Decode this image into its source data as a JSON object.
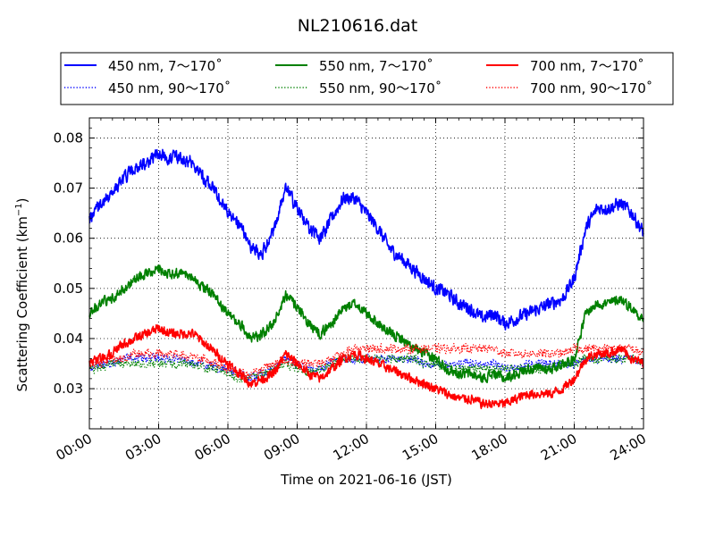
{
  "chart_data": {
    "type": "line",
    "title": "NL210616.dat",
    "xlabel": "Time on 2021-06-16 (JST)",
    "ylabel": "Scattering Coefficient (km",
    "ylabel_exp": "−1",
    "ylabel_close": ")",
    "xlim_hours": [
      0,
      24
    ],
    "ylim": [
      0.022,
      0.084
    ],
    "x_ticks": [
      0,
      3,
      6,
      9,
      12,
      15,
      18,
      21,
      24
    ],
    "x_tick_labels": [
      "00:00",
      "03:00",
      "06:00",
      "09:00",
      "12:00",
      "15:00",
      "18:00",
      "21:00",
      "24:00"
    ],
    "y_ticks": [
      0.03,
      0.04,
      0.05,
      0.06,
      0.07,
      0.08
    ],
    "y_tick_labels": [
      "0.03",
      "0.04",
      "0.05",
      "0.06",
      "0.07",
      "0.08"
    ],
    "grid": true,
    "legend_placement": "top, above plot",
    "hours": [
      0,
      0.5,
      1,
      1.5,
      2,
      2.5,
      3,
      3.5,
      4,
      4.5,
      5,
      5.5,
      6,
      6.5,
      7,
      7.5,
      8,
      8.5,
      9,
      9.5,
      10,
      10.5,
      11,
      11.5,
      12,
      12.5,
      13,
      13.5,
      14,
      14.5,
      15,
      15.5,
      16,
      16.5,
      17,
      17.5,
      18,
      18.5,
      19,
      19.5,
      20,
      20.5,
      21,
      21.5,
      22,
      22.5,
      23,
      23.5,
      24
    ],
    "series": [
      {
        "name": "450 nm, 7～170˚",
        "color": "#0000ff",
        "style": "solid",
        "noise": 0.0018,
        "values": [
          0.064,
          0.067,
          0.069,
          0.072,
          0.074,
          0.075,
          0.077,
          0.076,
          0.076,
          0.075,
          0.072,
          0.069,
          0.065,
          0.063,
          0.058,
          0.057,
          0.062,
          0.07,
          0.066,
          0.062,
          0.06,
          0.064,
          0.068,
          0.068,
          0.065,
          0.062,
          0.058,
          0.056,
          0.054,
          0.052,
          0.05,
          0.049,
          0.047,
          0.046,
          0.044,
          0.045,
          0.043,
          0.044,
          0.045,
          0.046,
          0.047,
          0.048,
          0.052,
          0.062,
          0.066,
          0.066,
          0.067,
          0.065,
          0.061
        ]
      },
      {
        "name": "450 nm, 90～170˚",
        "color": "#0000ff",
        "style": "dotted",
        "noise": 0.0012,
        "values": [
          0.034,
          0.035,
          0.035,
          0.036,
          0.036,
          0.036,
          0.036,
          0.036,
          0.036,
          0.035,
          0.035,
          0.034,
          0.034,
          0.033,
          0.032,
          0.033,
          0.034,
          0.036,
          0.035,
          0.034,
          0.034,
          0.035,
          0.036,
          0.036,
          0.036,
          0.036,
          0.036,
          0.036,
          0.036,
          0.035,
          0.035,
          0.035,
          0.035,
          0.035,
          0.035,
          0.035,
          0.034,
          0.034,
          0.035,
          0.035,
          0.035,
          0.035,
          0.035,
          0.036,
          0.036,
          0.036,
          0.036,
          0.036,
          0.035
        ]
      },
      {
        "name": "550 nm, 7～170˚",
        "color": "#008000",
        "style": "solid",
        "noise": 0.0014,
        "values": [
          0.045,
          0.047,
          0.048,
          0.05,
          0.052,
          0.053,
          0.054,
          0.053,
          0.053,
          0.052,
          0.05,
          0.048,
          0.045,
          0.043,
          0.04,
          0.041,
          0.043,
          0.049,
          0.046,
          0.043,
          0.041,
          0.043,
          0.046,
          0.047,
          0.045,
          0.043,
          0.041,
          0.04,
          0.038,
          0.037,
          0.036,
          0.034,
          0.033,
          0.033,
          0.032,
          0.033,
          0.032,
          0.033,
          0.034,
          0.034,
          0.034,
          0.035,
          0.036,
          0.045,
          0.047,
          0.047,
          0.048,
          0.046,
          0.044
        ]
      },
      {
        "name": "550 nm, 90～170˚",
        "color": "#008000",
        "style": "dotted",
        "noise": 0.0012,
        "values": [
          0.034,
          0.034,
          0.035,
          0.035,
          0.035,
          0.035,
          0.035,
          0.035,
          0.035,
          0.035,
          0.034,
          0.034,
          0.033,
          0.032,
          0.032,
          0.033,
          0.034,
          0.035,
          0.034,
          0.033,
          0.034,
          0.035,
          0.036,
          0.036,
          0.036,
          0.036,
          0.036,
          0.036,
          0.036,
          0.035,
          0.035,
          0.034,
          0.034,
          0.034,
          0.034,
          0.034,
          0.034,
          0.034,
          0.034,
          0.034,
          0.034,
          0.035,
          0.035,
          0.036,
          0.036,
          0.036,
          0.036,
          0.036,
          0.035
        ]
      },
      {
        "name": "700 nm, 7～170˚",
        "color": "#ff0000",
        "style": "solid",
        "noise": 0.0013,
        "values": [
          0.035,
          0.036,
          0.037,
          0.039,
          0.04,
          0.041,
          0.042,
          0.041,
          0.041,
          0.041,
          0.039,
          0.037,
          0.035,
          0.033,
          0.031,
          0.032,
          0.033,
          0.037,
          0.035,
          0.033,
          0.032,
          0.034,
          0.036,
          0.037,
          0.036,
          0.035,
          0.034,
          0.033,
          0.032,
          0.031,
          0.03,
          0.029,
          0.028,
          0.028,
          0.027,
          0.027,
          0.027,
          0.028,
          0.029,
          0.029,
          0.029,
          0.03,
          0.032,
          0.036,
          0.037,
          0.037,
          0.038,
          0.036,
          0.035
        ]
      },
      {
        "name": "700 nm, 90～170˚",
        "color": "#ff0000",
        "style": "dotted",
        "noise": 0.0012,
        "values": [
          0.035,
          0.035,
          0.036,
          0.036,
          0.037,
          0.037,
          0.037,
          0.037,
          0.037,
          0.036,
          0.036,
          0.035,
          0.034,
          0.033,
          0.033,
          0.034,
          0.035,
          0.036,
          0.035,
          0.035,
          0.035,
          0.036,
          0.037,
          0.038,
          0.038,
          0.038,
          0.038,
          0.038,
          0.038,
          0.038,
          0.038,
          0.038,
          0.038,
          0.038,
          0.038,
          0.038,
          0.037,
          0.037,
          0.037,
          0.037,
          0.037,
          0.037,
          0.038,
          0.038,
          0.038,
          0.038,
          0.038,
          0.038,
          0.037
        ]
      }
    ]
  }
}
